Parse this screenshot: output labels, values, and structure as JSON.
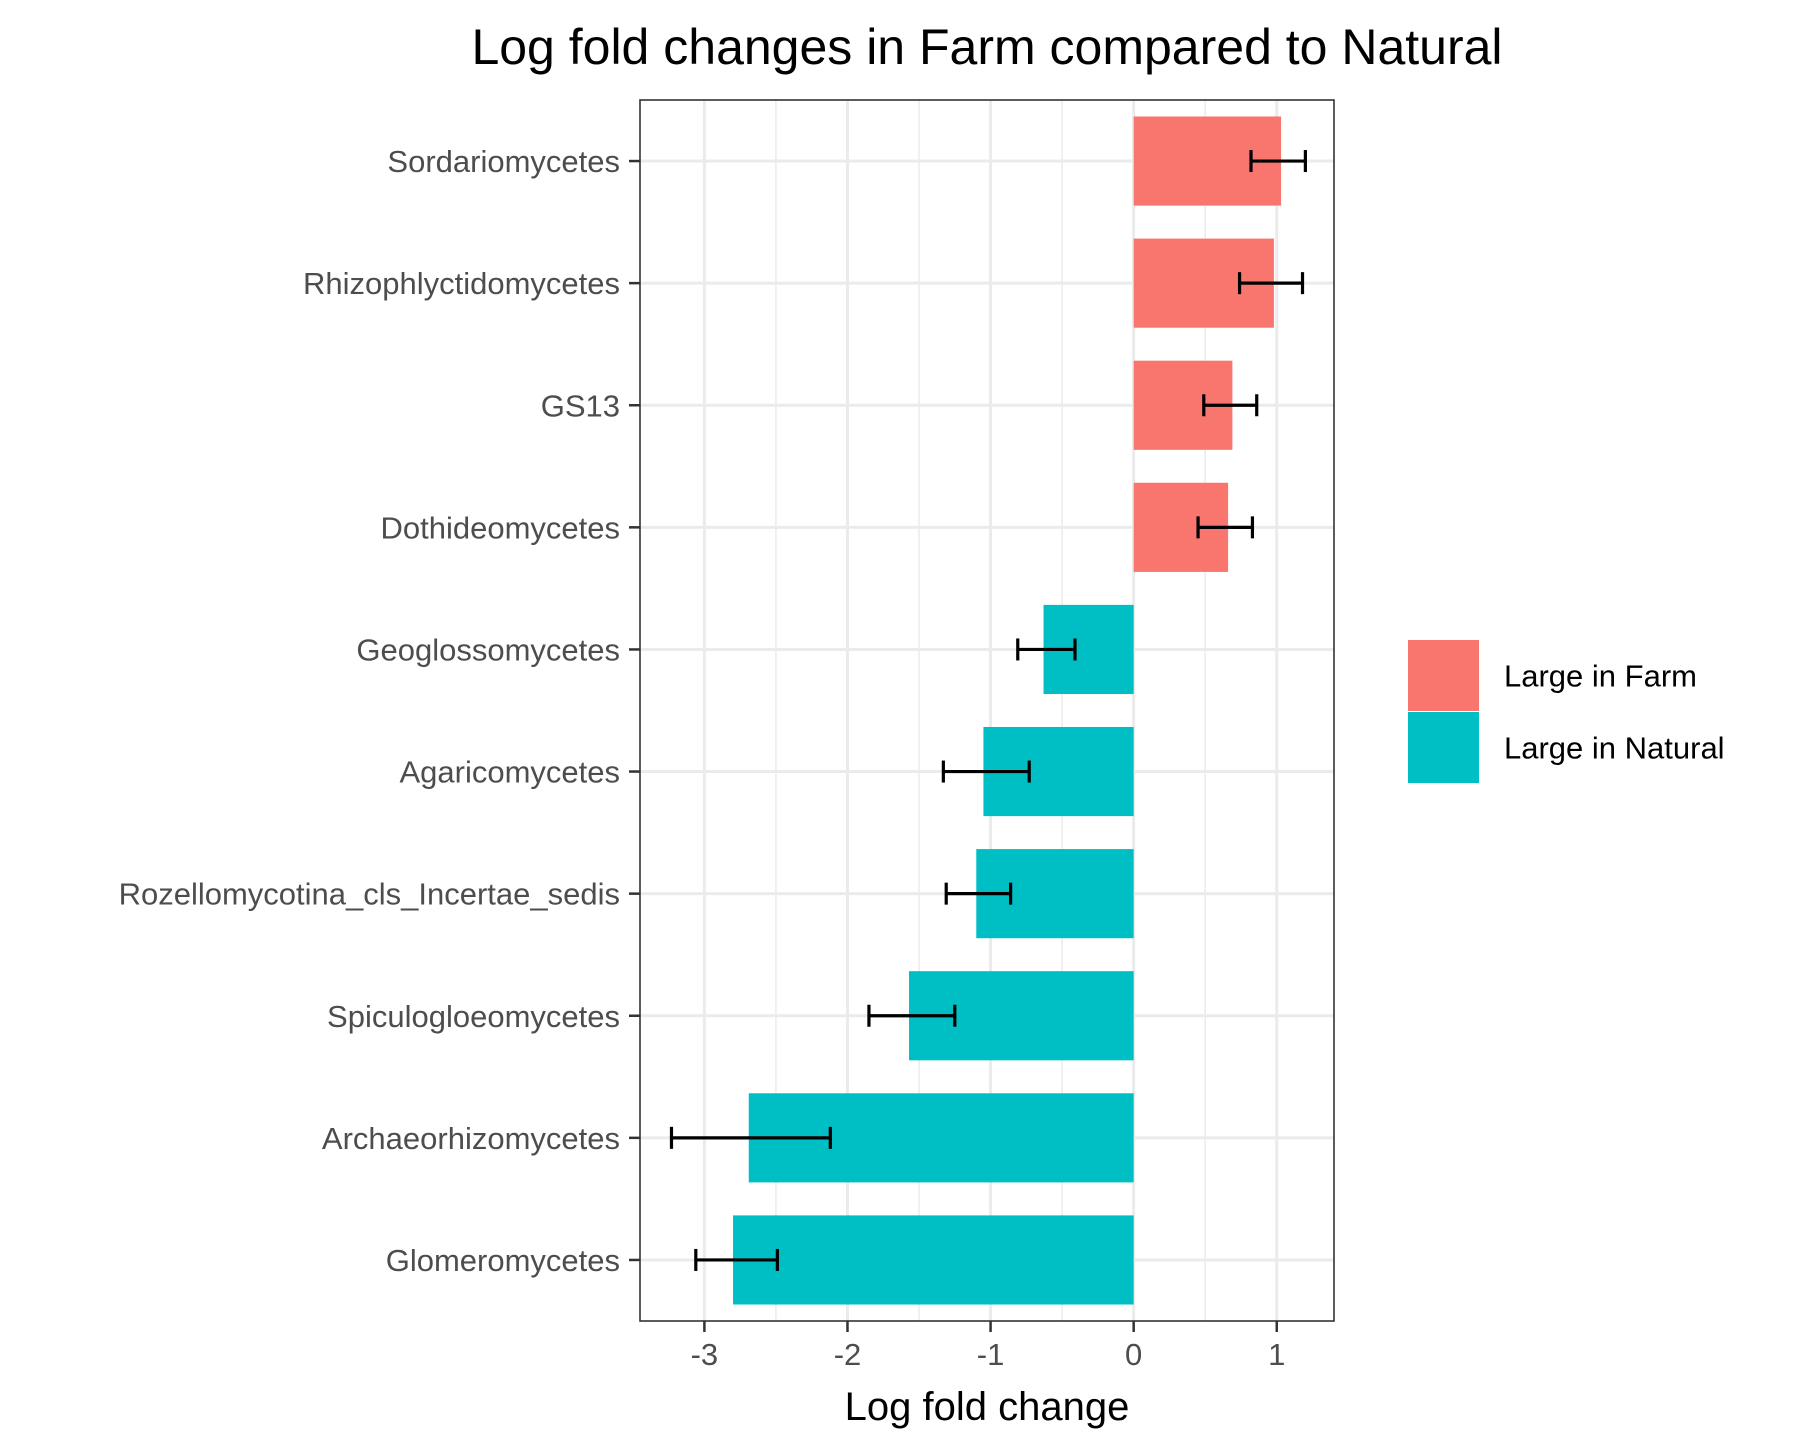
{
  "chart_data": {
    "type": "bar",
    "orientation": "horizontal",
    "title": "Log fold changes in Farm compared to Natural",
    "xlabel": "Log fold change",
    "ylabel": "",
    "xlim": [
      -3.45,
      1.4
    ],
    "xticks": [
      -3,
      -2,
      -1,
      0,
      1
    ],
    "grid": true,
    "legend_position": "right",
    "categories": [
      "Sordariomycetes",
      "Rhizophlyctidomycetes",
      "GS13",
      "Dothideomycetes",
      "Geoglossomycetes",
      "Agaricomycetes",
      "Rozellomycotina_cls_Incertae_sedis",
      "Spiculogloeomycetes",
      "Archaeorhizomycetes",
      "Glomeromycetes"
    ],
    "values": [
      1.03,
      0.98,
      0.69,
      0.66,
      -0.63,
      -1.05,
      -1.1,
      -1.57,
      -2.69,
      -2.8
    ],
    "error_low": [
      0.82,
      0.74,
      0.49,
      0.45,
      -0.81,
      -1.33,
      -1.31,
      -1.85,
      -3.23,
      -3.06
    ],
    "error_high": [
      1.2,
      1.18,
      0.86,
      0.83,
      -0.41,
      -0.73,
      -0.86,
      -1.25,
      -2.12,
      -2.49
    ],
    "groups": [
      "Large in Farm",
      "Large in Farm",
      "Large in Farm",
      "Large in Farm",
      "Large in Natural",
      "Large in Natural",
      "Large in Natural",
      "Large in Natural",
      "Large in Natural",
      "Large in Natural"
    ],
    "legend": [
      {
        "name": "Large in Farm",
        "color": "#F8766D"
      },
      {
        "name": "Large in Natural",
        "color": "#00BFC4"
      }
    ]
  }
}
